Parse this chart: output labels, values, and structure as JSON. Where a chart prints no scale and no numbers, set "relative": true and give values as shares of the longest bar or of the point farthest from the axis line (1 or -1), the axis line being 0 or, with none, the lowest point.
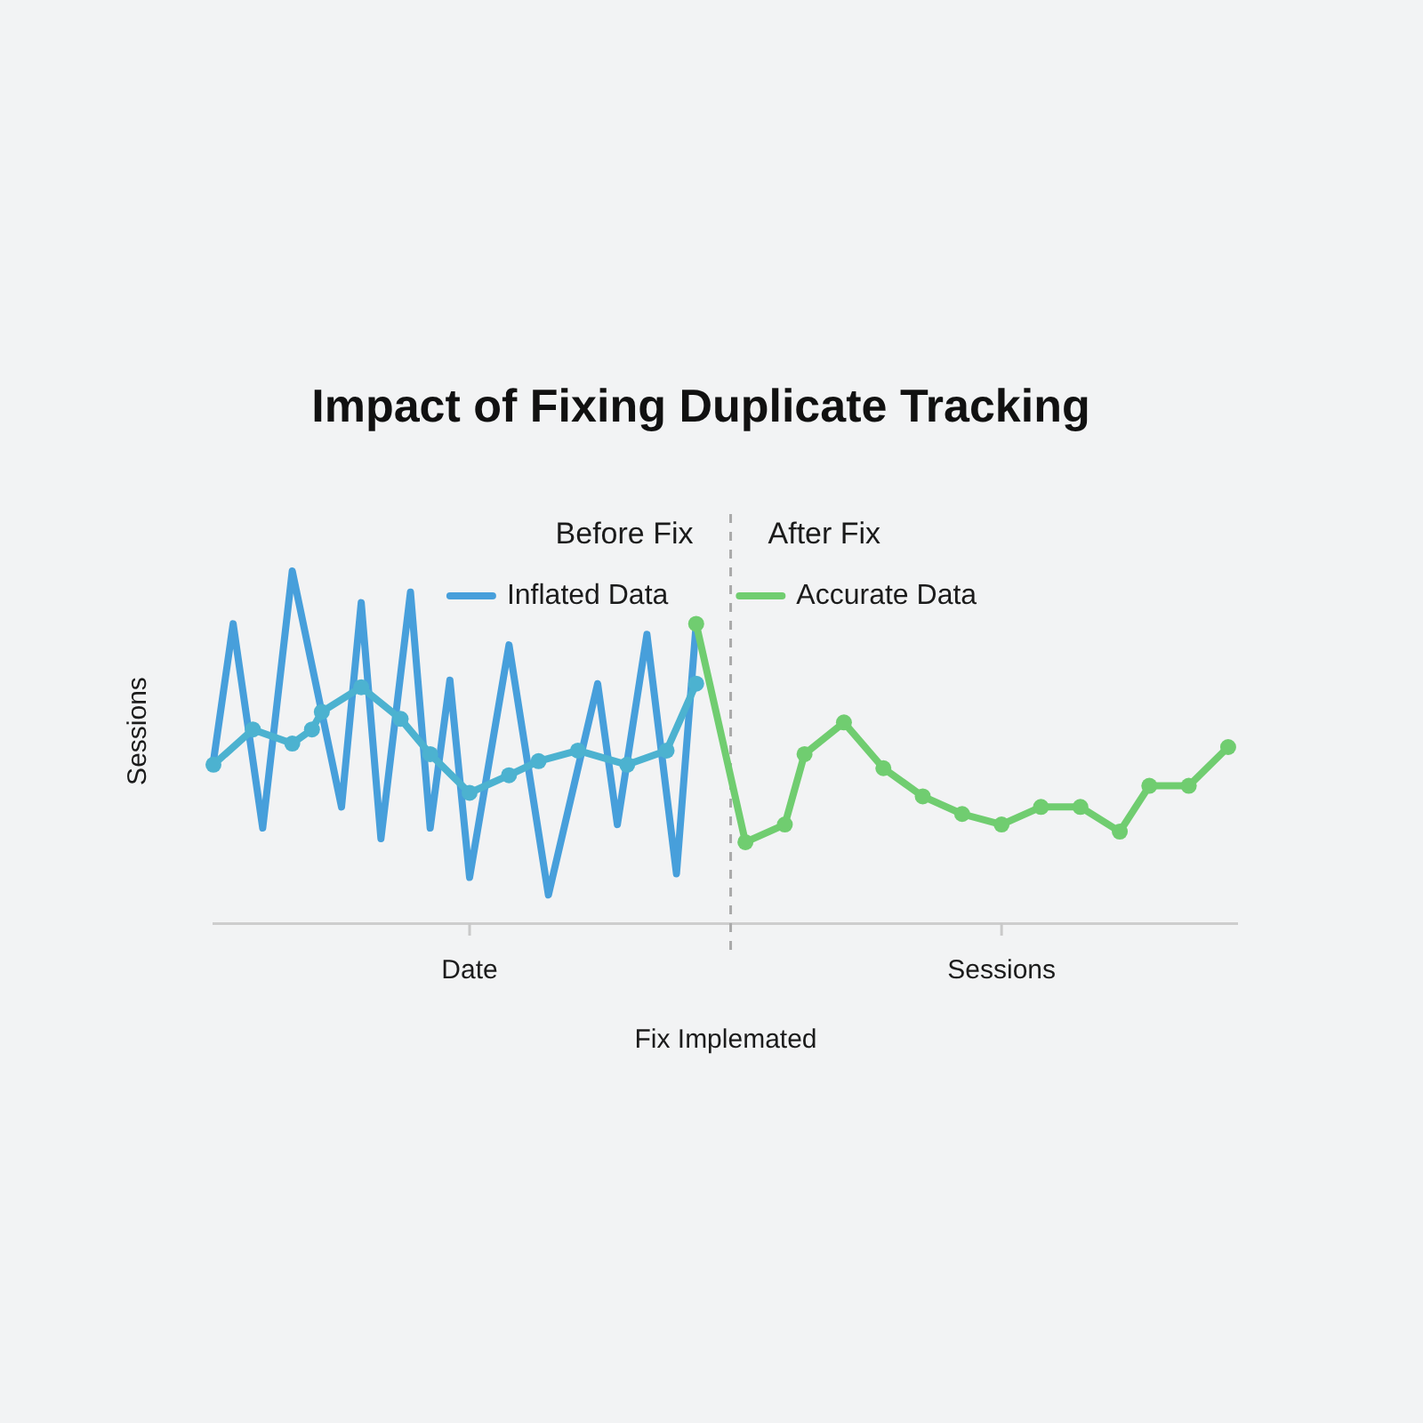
{
  "chart_data": {
    "type": "line",
    "title": "Impact of Fixing Duplicate Tracking",
    "xlabel": "Fix Implemated",
    "ylabel": "Sessions",
    "annotations": [
      "Before Fix",
      "After Fix"
    ],
    "relative": true,
    "grid": false,
    "legend": "top",
    "categories": [
      null,
      null,
      null,
      null,
      null,
      null,
      null,
      null,
      null,
      null,
      null,
      null,
      null,
      null,
      null,
      null,
      null,
      null,
      null,
      null,
      null,
      null,
      null,
      null,
      null,
      null,
      "Date",
      null,
      null,
      null,
      null,
      null,
      null,
      null,
      null,
      null,
      null,
      null,
      null,
      null,
      null,
      null,
      null,
      null,
      null,
      null,
      null,
      null,
      null,
      null,
      null,
      null,
      null,
      null,
      null,
      null,
      null,
      null,
      null,
      null,
      null,
      null,
      null,
      null,
      null,
      null,
      null,
      null,
      null,
      null,
      null,
      null,
      null,
      null,
      null,
      null,
      null,
      null,
      null,
      null,
      "Sessions",
      null,
      null,
      null,
      null,
      null,
      null,
      null,
      null,
      null,
      null,
      null,
      null,
      null,
      null,
      null,
      null,
      null,
      null,
      null,
      null,
      null,
      null,
      null,
      null
    ],
    "series": [
      {
        "name": "Inflated Data",
        "color": "#479fdb",
        "marker": "none",
        "values": [
          0.46,
          null,
          0.85,
          null,
          null,
          0.27,
          null,
          null,
          1,
          null,
          null,
          null,
          null,
          0.33,
          null,
          0.91,
          null,
          0.24,
          null,
          null,
          0.94,
          null,
          0.27,
          null,
          0.69,
          null,
          0.13,
          null,
          null,
          null,
          0.79,
          null,
          null,
          null,
          0.08,
          null,
          null,
          null,
          null,
          0.68,
          null,
          0.28,
          null,
          null,
          0.82,
          null,
          null,
          0.14,
          null,
          0.85,
          null,
          null,
          null,
          null,
          null,
          null,
          null,
          null,
          null,
          null,
          null,
          null,
          null,
          null,
          null,
          null,
          null,
          null,
          null,
          null,
          null,
          null,
          null,
          null,
          null,
          null,
          null,
          null,
          null,
          null,
          null,
          null,
          null,
          null,
          null,
          null,
          null,
          null,
          null,
          null,
          null,
          null,
          null,
          null,
          null,
          null,
          null,
          null,
          null,
          null,
          null,
          null,
          null,
          null,
          null
        ]
      },
      {
        "color": "#4cb2d0",
        "marker": "circle",
        "values": [
          0.45,
          null,
          null,
          null,
          0.55,
          null,
          null,
          null,
          0.51,
          null,
          0.55,
          0.6,
          null,
          null,
          null,
          0.67,
          null,
          null,
          null,
          0.58,
          null,
          null,
          0.48,
          null,
          null,
          null,
          0.37,
          null,
          null,
          null,
          0.42,
          null,
          null,
          0.46,
          null,
          null,
          null,
          0.49,
          null,
          null,
          null,
          null,
          0.45,
          null,
          null,
          null,
          0.49,
          null,
          null,
          0.68,
          null,
          null,
          null,
          null,
          null,
          null,
          null,
          null,
          null,
          null,
          null,
          null,
          null,
          null,
          null,
          null,
          null,
          null,
          null,
          null,
          null,
          null,
          null,
          null,
          null,
          null,
          null,
          null,
          null,
          null,
          null,
          null,
          null,
          null,
          null,
          null,
          null,
          null,
          null,
          null,
          null,
          null,
          null,
          null,
          null,
          null,
          null,
          null,
          null,
          null,
          null,
          null,
          null,
          null,
          null
        ]
      },
      {
        "name": "Accurate Data",
        "color": "#70cd70",
        "marker": "circle",
        "values": [
          null,
          null,
          null,
          null,
          null,
          null,
          null,
          null,
          null,
          null,
          null,
          null,
          null,
          null,
          null,
          null,
          null,
          null,
          null,
          null,
          null,
          null,
          null,
          null,
          null,
          null,
          null,
          null,
          null,
          null,
          null,
          null,
          null,
          null,
          null,
          null,
          null,
          null,
          null,
          null,
          null,
          null,
          null,
          null,
          null,
          null,
          null,
          null,
          null,
          0.85,
          null,
          null,
          null,
          null,
          0.23,
          null,
          null,
          null,
          0.28,
          null,
          0.48,
          null,
          null,
          null,
          0.57,
          null,
          null,
          null,
          0.44,
          null,
          null,
          null,
          0.36,
          null,
          null,
          null,
          0.31,
          null,
          null,
          null,
          0.28,
          null,
          null,
          null,
          0.33,
          null,
          null,
          null,
          0.33,
          null,
          null,
          null,
          0.26,
          null,
          null,
          0.39,
          null,
          null,
          null,
          0.39,
          null,
          null,
          null,
          0.5,
          null
        ]
      }
    ]
  }
}
